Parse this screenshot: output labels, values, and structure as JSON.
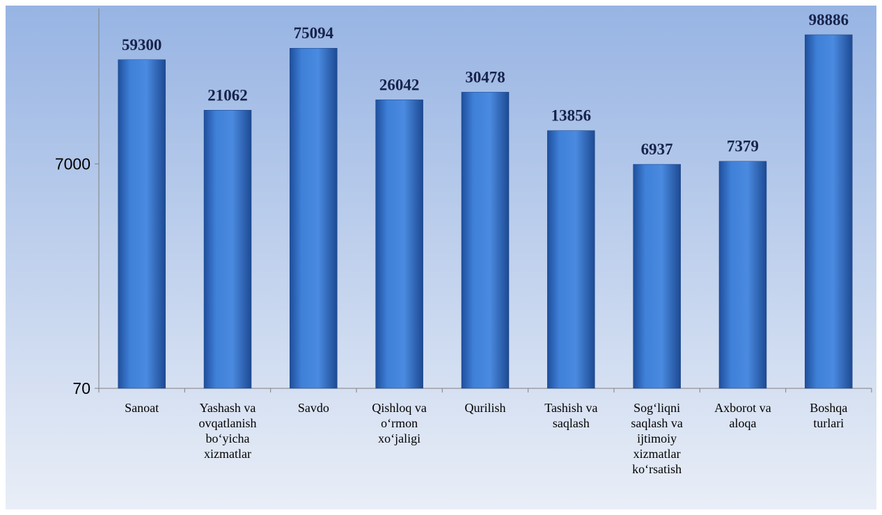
{
  "chart_data": {
    "type": "bar",
    "log_scale": true,
    "categories": [
      "Sanoat",
      "Yashash va\novqatlanish\nbo‘yicha\nxizmatlar",
      "Savdo",
      "Qishloq va\no‘rmon\nxo‘jaligi",
      "Qurilish",
      "Tashish va\nsaqlash",
      "Sog‘liqni\nsaqlash va\nijtimoiy\nxizmatlar\nko‘rsatish",
      "Axborot va\naloqa",
      "Boshqa\nturlari"
    ],
    "values": [
      59300,
      21062,
      75094,
      26042,
      30478,
      13856,
      6937,
      7379,
      98886
    ],
    "color": "#3b7bd4",
    "ylim": [
      70,
      170000
    ],
    "yticks": [
      70,
      7000
    ]
  }
}
